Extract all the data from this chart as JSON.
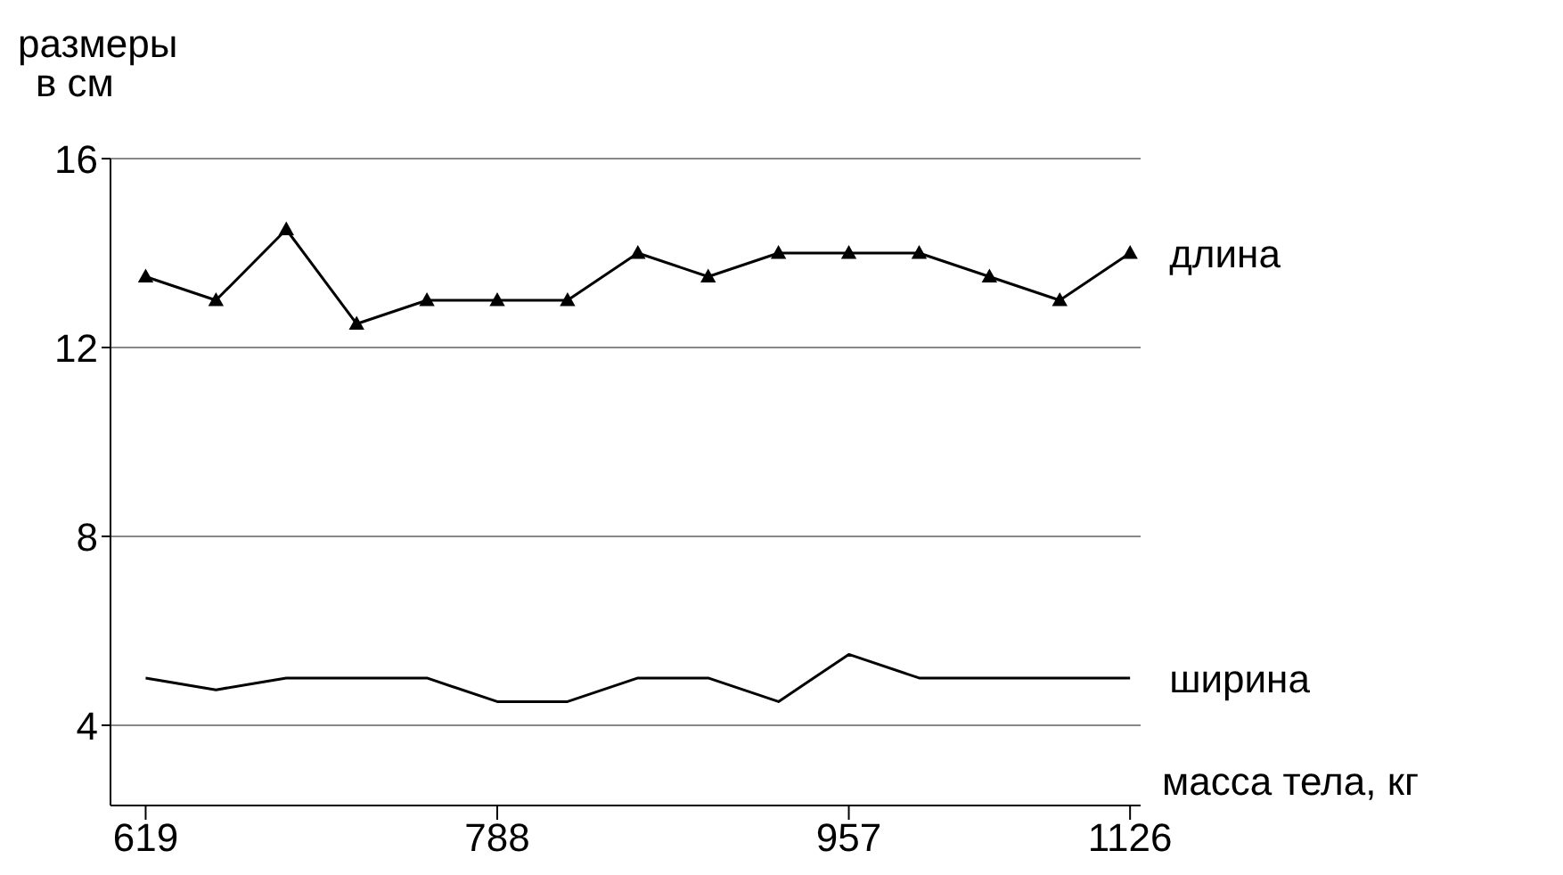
{
  "chart_data": {
    "type": "line",
    "xlabel": "масса тела, кг",
    "ylabel": "размеры\nв см",
    "categories": [
      "619",
      null,
      null,
      null,
      null,
      "788",
      null,
      null,
      null,
      null,
      "957",
      null,
      null,
      null,
      "1126"
    ],
    "series": [
      {
        "name": "длина",
        "color": "#000000",
        "marker": "triangle",
        "values": [
          13.5,
          13,
          14.5,
          12.5,
          13,
          13,
          13,
          14,
          13.5,
          14,
          14,
          14,
          13.5,
          13,
          14
        ]
      },
      {
        "name": "ширина",
        "color": "#000000",
        "marker": "none",
        "values": [
          5,
          4.75,
          5,
          5,
          5,
          4.5,
          4.5,
          5,
          5,
          4.5,
          5.5,
          5,
          5,
          5,
          5
        ]
      }
    ],
    "ylim": [
      2.3,
      16
    ],
    "yticks": [
      4,
      8,
      12,
      16
    ],
    "grid": "y",
    "legend": false,
    "line_style": "solid"
  }
}
